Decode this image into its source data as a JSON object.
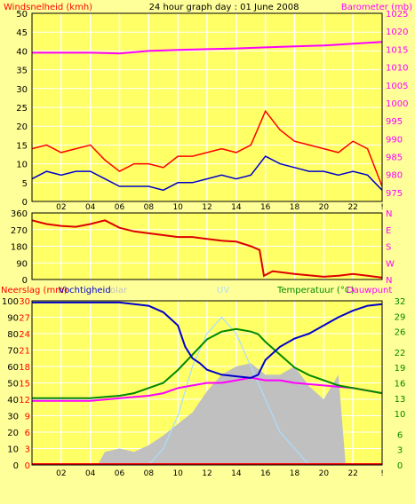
{
  "chart_data": [
    {
      "type": "line",
      "title": "24 hour graph day : 01 June 2008",
      "ylabel": "Windsnelheid (kmh)",
      "y2label": "Barometer (mb)",
      "ylim": [
        0,
        50
      ],
      "y2lim": [
        972.5,
        1025
      ],
      "yticks": [
        0,
        5,
        10,
        15,
        20,
        25,
        30,
        35,
        40,
        45,
        50
      ],
      "y2ticks": [
        975,
        980,
        985,
        990,
        995,
        1000,
        1005,
        1010,
        1015,
        1020,
        1025
      ],
      "xticks": [
        "02",
        "04",
        "06",
        "08",
        "10",
        "12",
        "14",
        "16",
        "18",
        "20",
        "22",
        "!"
      ],
      "grid": true,
      "colors": {
        "gust": "#ff0000",
        "speed": "#0000cc",
        "barometer": "#ff00ff",
        "background": "#ffff66",
        "grid": "#ffffff"
      },
      "series": [
        {
          "x": [
            0,
            1,
            2,
            3,
            4,
            5,
            6,
            7,
            8,
            9,
            10,
            11,
            12,
            13,
            14,
            15,
            16,
            17,
            18,
            19,
            20,
            21,
            22,
            23,
            24
          ],
          "values": [
            14,
            15,
            13,
            14,
            15,
            11,
            8,
            10,
            10,
            9,
            12,
            12,
            13,
            14,
            13,
            15,
            24,
            19,
            16,
            15,
            14,
            13,
            16,
            14,
            4
          ]
        },
        {
          "x": [
            0,
            1,
            2,
            3,
            4,
            5,
            6,
            7,
            8,
            9,
            10,
            11,
            12,
            13,
            14,
            15,
            16,
            17,
            18,
            19,
            20,
            21,
            22,
            23,
            24
          ],
          "values": [
            6,
            8,
            7,
            8,
            8,
            6,
            4,
            4,
            4,
            3,
            5,
            5,
            6,
            7,
            6,
            7,
            12,
            10,
            9,
            8,
            8,
            7,
            8,
            7,
            3
          ]
        },
        {
          "x": [
            0,
            2,
            4,
            6,
            8,
            10,
            12,
            14,
            16,
            18,
            20,
            22,
            24
          ],
          "values": [
            1014,
            1014,
            1014,
            1013.8,
            1014.5,
            1014.8,
            1015,
            1015.2,
            1015.5,
            1015.8,
            1016,
            1016.5,
            1017
          ]
        }
      ]
    },
    {
      "type": "scatter",
      "yticks": [
        0,
        90,
        180,
        270,
        360
      ],
      "ylim": [
        0,
        360
      ],
      "y2ticks": [
        "N",
        "W",
        "S",
        "E",
        "N"
      ],
      "xticks": [
        "02",
        "04",
        "06",
        "08",
        "10",
        "12",
        "14",
        "16",
        "18",
        "20",
        "22",
        "!"
      ],
      "colors": {
        "direction": "#dd0000"
      },
      "series": [
        {
          "x": [
            0,
            1,
            2,
            3,
            4,
            5,
            6,
            7,
            8,
            9,
            10,
            11,
            12,
            13,
            14,
            15,
            15.6,
            15.9,
            16.5,
            18,
            20,
            21,
            22,
            23,
            24
          ],
          "values": [
            320,
            300,
            290,
            285,
            300,
            320,
            280,
            260,
            250,
            240,
            230,
            230,
            220,
            210,
            205,
            180,
            160,
            20,
            45,
            30,
            15,
            20,
            30,
            20,
            10
          ]
        }
      ]
    },
    {
      "type": "line",
      "ylabel": "Neerslag (mm)",
      "ylabel2": "Vochtigheid",
      "ylabel3": "olar",
      "ylabel4": "UV",
      "y2label": "Temperatuur (°C)",
      "y2label2": "Dauwpunt",
      "ylim": [
        0,
        100
      ],
      "yticks": [
        0,
        10,
        20,
        30,
        40,
        50,
        60,
        70,
        80,
        90,
        100
      ],
      "y2lim": [
        0,
        32
      ],
      "y2ticks": [
        0,
        3,
        6,
        10,
        13,
        16,
        19,
        22,
        26,
        29,
        32
      ],
      "y3ticks": [
        0,
        3,
        6,
        9,
        12,
        15,
        18,
        21,
        24,
        27,
        30
      ],
      "xticks": [
        "02",
        "04",
        "06",
        "08",
        "10",
        "12",
        "14",
        "16",
        "18",
        "20",
        "22",
        "!"
      ],
      "colors": {
        "humidity": "#0000cc",
        "temperature": "#008800",
        "dewpoint": "#ff00ff",
        "solar": "#c0c0c0",
        "uv": "#aaddff",
        "rain": "#ff0000"
      },
      "series": [
        {
          "x": [
            0,
            2,
            4,
            6,
            8,
            9,
            10,
            10.5,
            11,
            11.5,
            12,
            13,
            14,
            15,
            15.5,
            16,
            17,
            18,
            19,
            20,
            21,
            22,
            23,
            24
          ],
          "values": [
            99,
            99,
            99,
            99,
            97,
            93,
            85,
            72,
            65,
            62,
            58,
            55,
            54,
            53,
            55,
            64,
            72,
            77,
            80,
            85,
            90,
            94,
            97,
            98
          ]
        },
        {
          "x": [
            0,
            2,
            4,
            6,
            7,
            8,
            9,
            10,
            11,
            12,
            13,
            14,
            15,
            15.5,
            16,
            17,
            18,
            19,
            20,
            21,
            22,
            23,
            24
          ],
          "values": [
            13,
            13,
            13,
            13.5,
            14,
            15,
            16,
            18.5,
            21.5,
            24.5,
            26,
            26.5,
            26,
            25.5,
            24,
            21.5,
            19,
            17.5,
            16.5,
            15.5,
            15,
            14.5,
            14
          ]
        },
        {
          "x": [
            0,
            2,
            4,
            6,
            8,
            9,
            10,
            11,
            12,
            13,
            14,
            15,
            16,
            17,
            18,
            20,
            22,
            24
          ],
          "values": [
            12.5,
            12.5,
            12.5,
            13,
            13.5,
            14,
            15,
            15.5,
            16,
            16,
            16.5,
            17,
            16.5,
            16.5,
            16,
            15.5,
            15,
            14
          ]
        },
        {
          "x": [
            0,
            4.5,
            5,
            6,
            7,
            8,
            9,
            10,
            11,
            12,
            13,
            14,
            15,
            16,
            17,
            18,
            19,
            20,
            21,
            21.5,
            22,
            24
          ],
          "values": [
            0,
            0,
            8,
            10,
            8,
            12,
            18,
            25,
            32,
            45,
            55,
            60,
            62,
            55,
            55,
            60,
            48,
            40,
            55,
            0,
            0,
            0
          ]
        },
        {
          "x": [
            0,
            6,
            7,
            8,
            9,
            10,
            11,
            12,
            13,
            14,
            15,
            16,
            17,
            18,
            19,
            20,
            24
          ],
          "values": [
            0,
            0,
            0,
            0,
            1,
            3,
            6,
            8,
            9,
            8,
            6,
            4,
            2,
            1,
            0,
            0,
            0
          ]
        },
        {
          "x": [
            0,
            24
          ],
          "values": [
            0,
            0
          ]
        }
      ]
    }
  ]
}
